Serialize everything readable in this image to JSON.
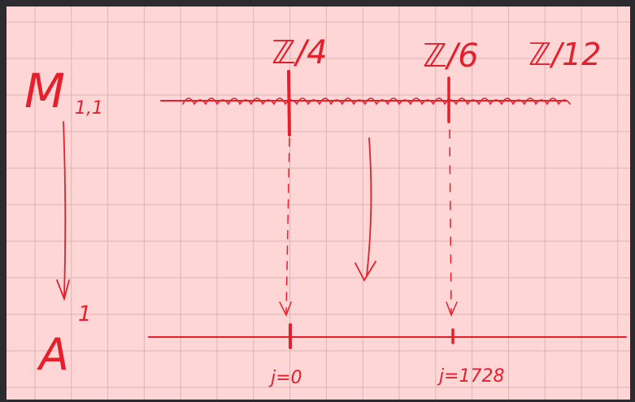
{
  "labels": {
    "top": [
      "ℤ/4",
      "ℤ/6",
      "ℤ/12"
    ],
    "moduli": "M",
    "moduli_sub": "1,1",
    "affine": "A",
    "affine_sup": "1",
    "j_values": [
      "j=0",
      "j=1728"
    ]
  }
}
